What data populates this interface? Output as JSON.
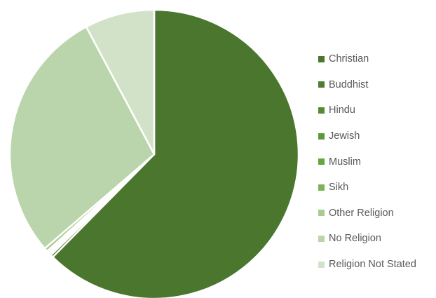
{
  "chart_data": {
    "type": "pie",
    "title": "",
    "start_angle_deg": 0,
    "direction": "clockwise",
    "legend_position": "right",
    "series": [
      {
        "categories": [
          "Christian",
          "Buddhist",
          "Hindu",
          "Jewish",
          "Muslim",
          "Sikh",
          "Other Religion",
          "No Religion",
          "Religion Not Stated"
        ],
        "values": [
          62.4,
          0.3,
          0.2,
          0.1,
          0.2,
          0.1,
          0.4,
          28.5,
          7.8
        ],
        "colors": [
          "#4a762e",
          "#4f7d31",
          "#558a35",
          "#5b9a3a",
          "#62a83f",
          "#7ab55a",
          "#a7cc8d",
          "#bad5ab",
          "#d2e2c8"
        ]
      }
    ]
  }
}
